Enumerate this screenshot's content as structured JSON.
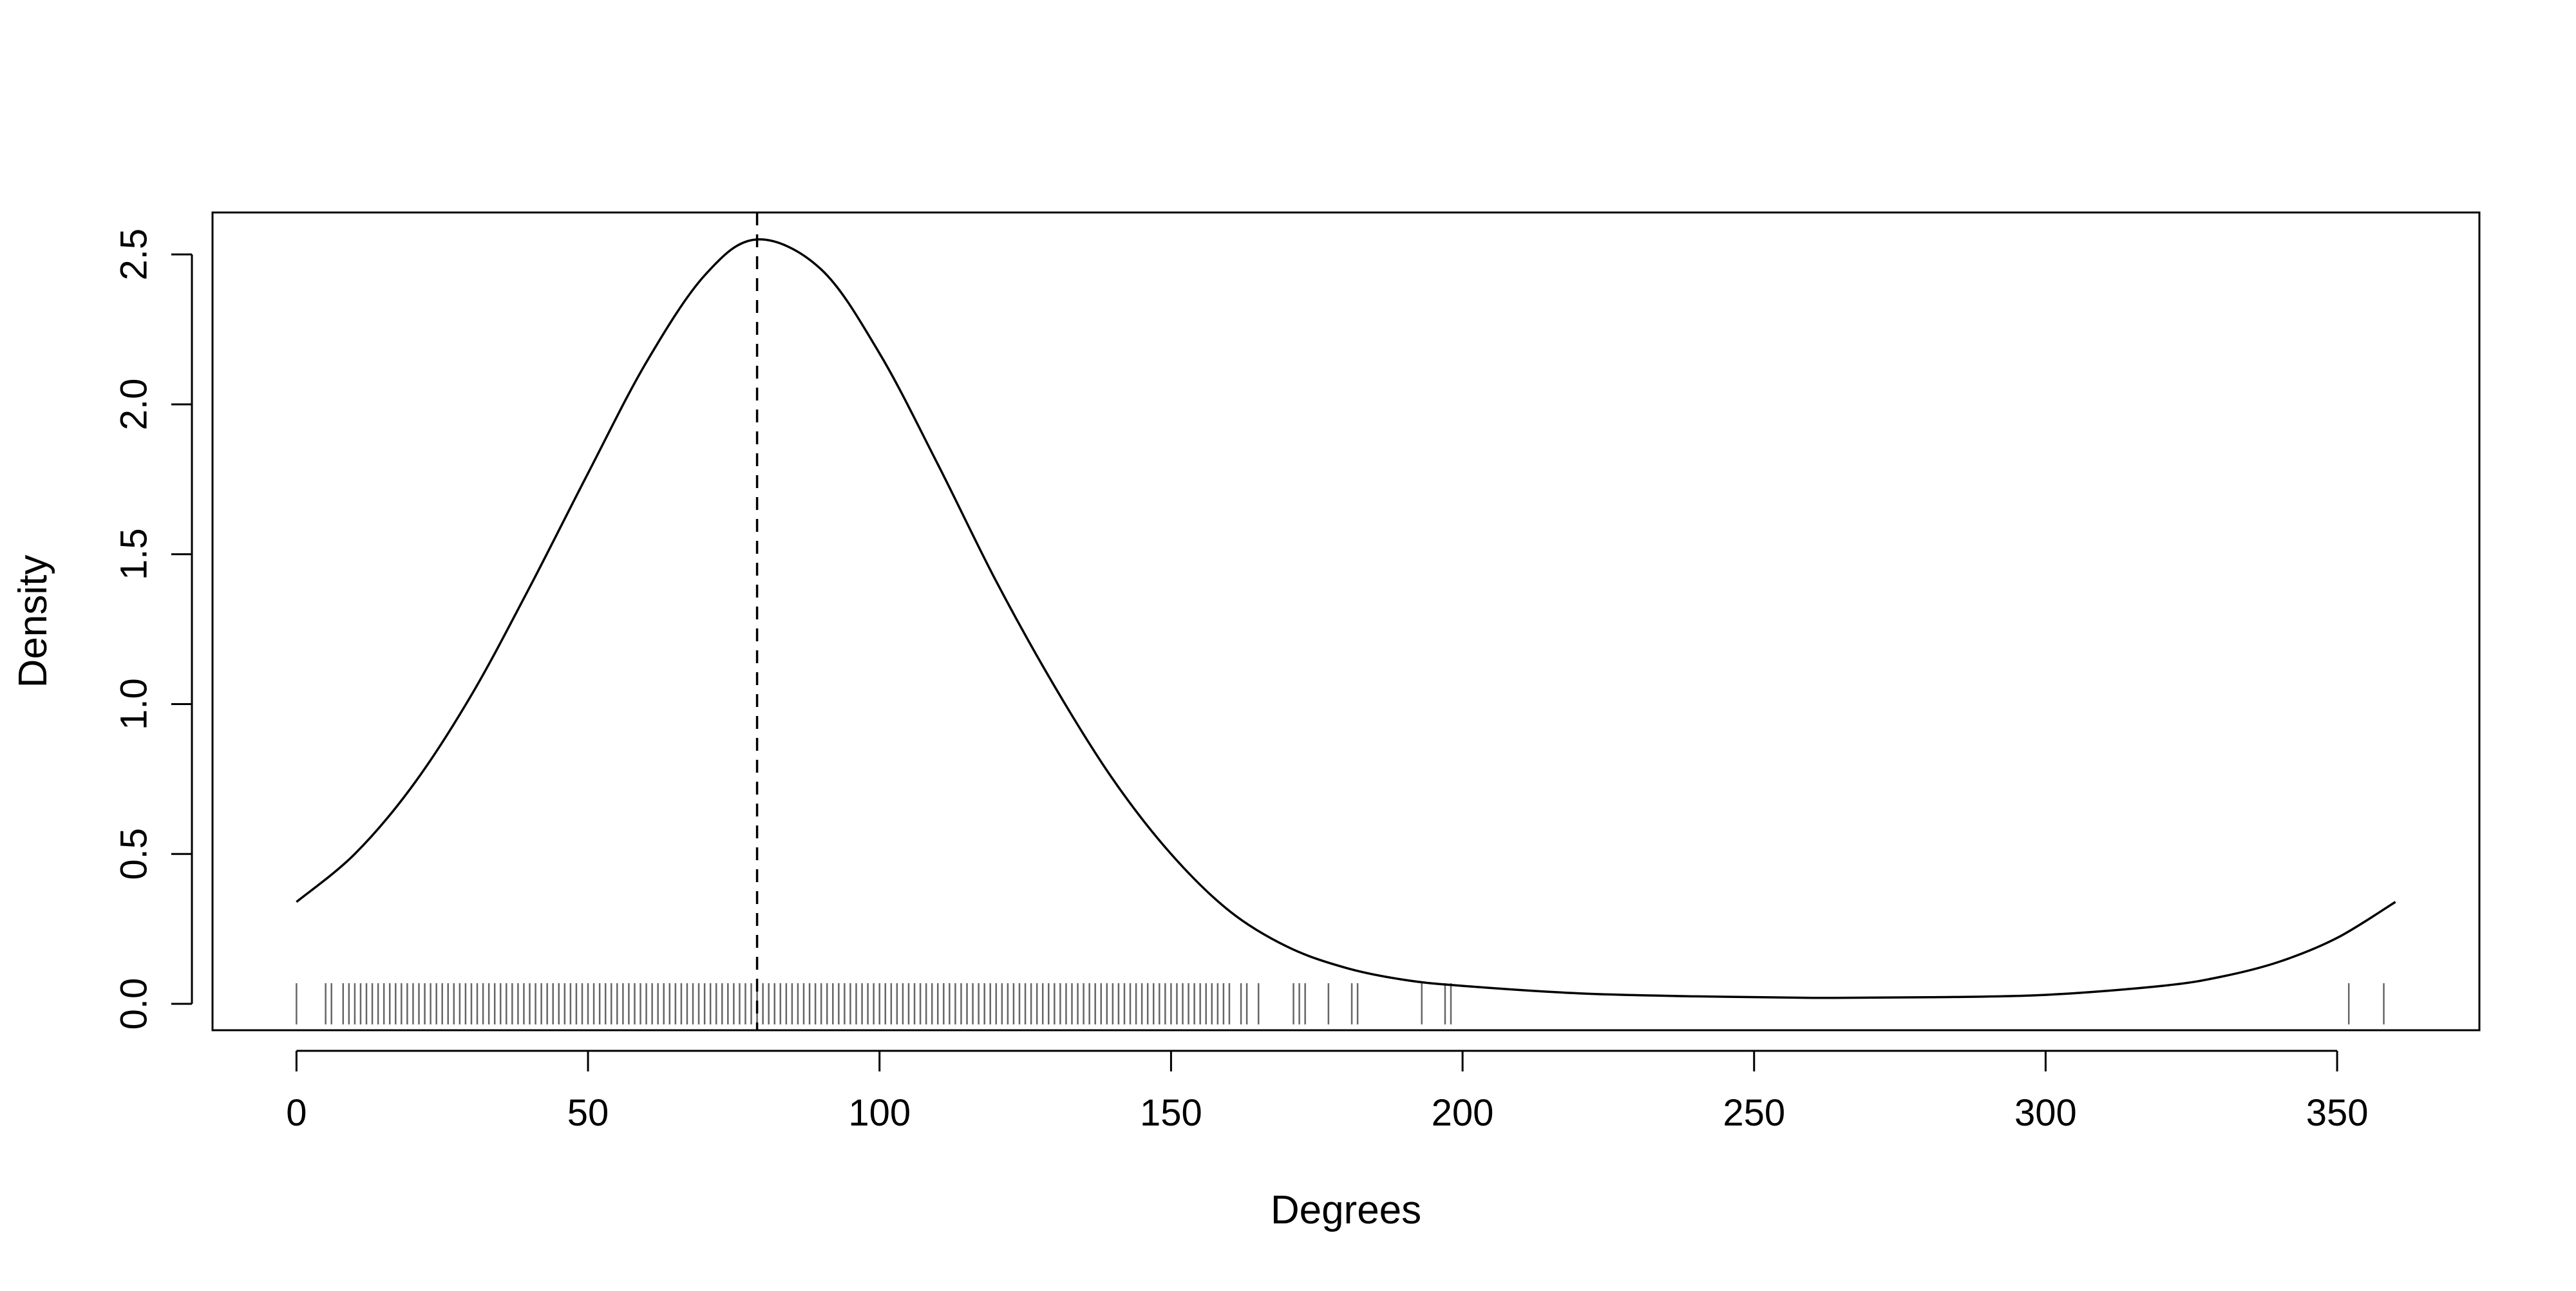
{
  "chart_data": {
    "type": "line",
    "title": "",
    "xlabel": "Degrees",
    "ylabel": "Density",
    "xlim": [
      -14.4,
      374.4
    ],
    "ylim": [
      -0.088,
      2.64
    ],
    "xticks": [
      0,
      50,
      100,
      150,
      200,
      250,
      300,
      350
    ],
    "xtick_labels": [
      "0",
      "50",
      "100",
      "150",
      "200",
      "250",
      "300",
      "350"
    ],
    "yticks": [
      0.0,
      0.5,
      1.0,
      1.5,
      2.0,
      2.5
    ],
    "ytick_labels": [
      "0.0",
      "0.5",
      "1.0",
      "1.5",
      "2.0",
      "2.5"
    ],
    "grid": false,
    "legend": "none",
    "series": [
      {
        "style": "solid",
        "color": "#000000",
        "x": [
          0,
          10,
          20,
          30,
          40,
          50,
          60,
          70,
          79,
          90,
          100,
          110,
          120,
          130,
          140,
          150,
          160,
          170,
          180,
          190,
          200,
          220,
          240,
          260,
          280,
          300,
          320,
          330,
          340,
          350,
          360
        ],
        "y": [
          0.34,
          0.5,
          0.73,
          1.03,
          1.39,
          1.77,
          2.14,
          2.43,
          2.55,
          2.45,
          2.17,
          1.8,
          1.41,
          1.06,
          0.75,
          0.5,
          0.31,
          0.19,
          0.12,
          0.08,
          0.06,
          0.035,
          0.025,
          0.02,
          0.022,
          0.03,
          0.06,
          0.09,
          0.14,
          0.22,
          0.34
        ]
      }
    ],
    "reference_line": {
      "x": 79,
      "style": "dashed",
      "color": "#000000"
    },
    "rug": {
      "y": 0.0,
      "x": [
        0,
        5,
        6,
        8,
        9,
        10,
        11,
        12,
        13,
        14,
        15,
        16,
        17,
        18,
        19,
        20,
        21,
        22,
        23,
        24,
        25,
        26,
        27,
        28,
        29,
        30,
        31,
        32,
        33,
        34,
        35,
        36,
        37,
        38,
        39,
        40,
        41,
        42,
        43,
        44,
        45,
        46,
        47,
        48,
        49,
        50,
        51,
        52,
        53,
        54,
        55,
        56,
        57,
        58,
        59,
        60,
        61,
        62,
        63,
        64,
        65,
        66,
        67,
        68,
        69,
        70,
        71,
        72,
        73,
        74,
        75,
        76,
        77,
        78,
        79,
        80,
        81,
        82,
        83,
        84,
        85,
        86,
        87,
        88,
        89,
        90,
        91,
        92,
        93,
        94,
        95,
        96,
        97,
        98,
        99,
        100,
        101,
        102,
        103,
        104,
        105,
        106,
        107,
        108,
        109,
        110,
        111,
        112,
        113,
        114,
        115,
        116,
        117,
        118,
        119,
        120,
        121,
        122,
        123,
        124,
        125,
        126,
        127,
        128,
        129,
        130,
        131,
        132,
        133,
        134,
        135,
        136,
        137,
        138,
        139,
        140,
        141,
        142,
        143,
        144,
        145,
        146,
        147,
        148,
        149,
        150,
        151,
        152,
        153,
        154,
        155,
        156,
        157,
        158,
        159,
        160,
        162,
        163,
        165,
        171,
        172,
        173,
        177,
        181,
        182,
        193,
        197,
        198,
        352,
        358
      ]
    }
  }
}
